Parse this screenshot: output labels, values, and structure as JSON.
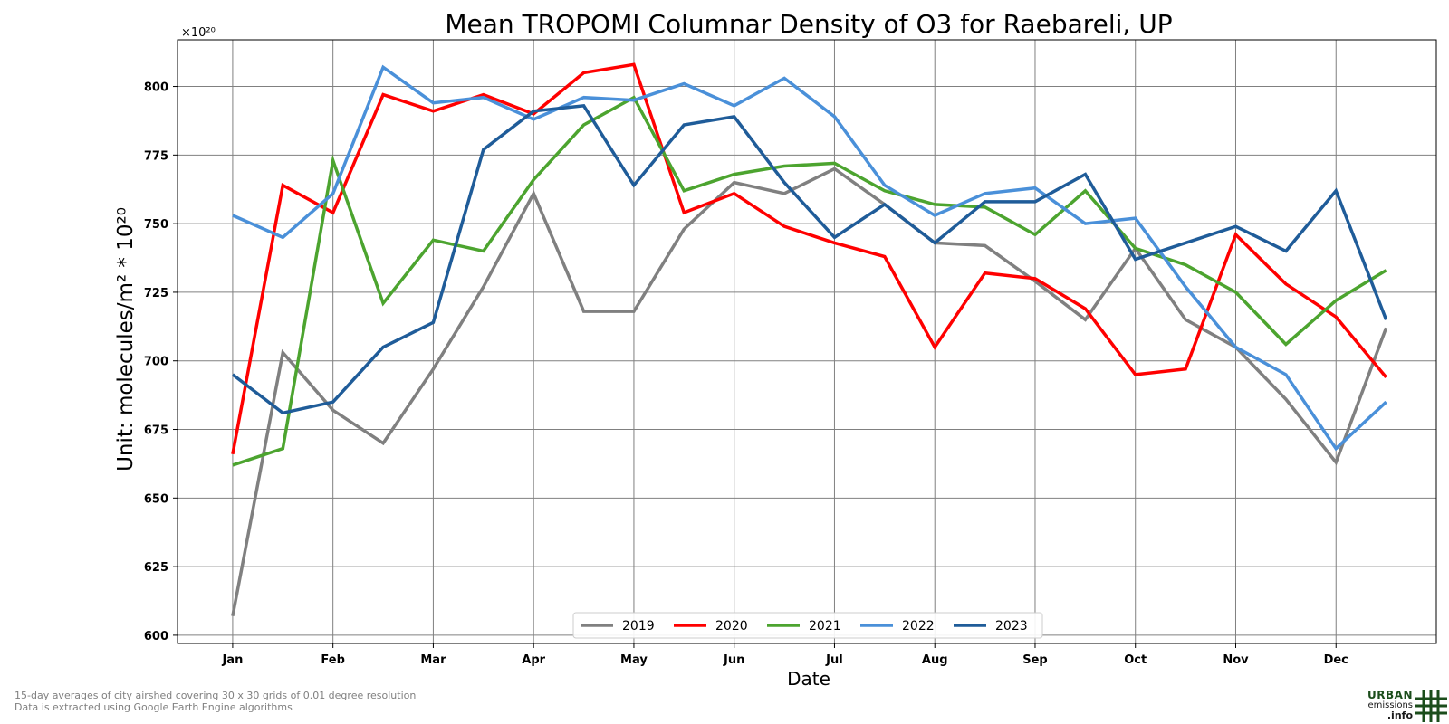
{
  "title": "Mean TROPOMI Columnar Density of O3 for Raebareli, UP",
  "footnotes": [
    "15-day averages of city airshed covering 30 x 30 grids of 0.01 degree resolution",
    "Data is extracted using Google Earth Engine algorithms"
  ],
  "logo": {
    "line1": "URBAN",
    "line2": "emissions",
    "line3": ".info",
    "icon": "grid-hash-icon"
  },
  "chart_data": {
    "type": "line",
    "title": "Mean TROPOMI Columnar Density of O3 for Raebareli, UP",
    "xlabel": "Date",
    "ylabel": "Unit: molecules/m² * 10²⁰",
    "y_offset_label": "×10²⁰",
    "ylim": [
      597,
      817
    ],
    "yticks": [
      600,
      625,
      650,
      675,
      700,
      725,
      750,
      775,
      800
    ],
    "xlim": [
      -0.55,
      12.0
    ],
    "xtick_labels": [
      "Jan",
      "Feb",
      "Mar",
      "Apr",
      "May",
      "Jun",
      "Jul",
      "Aug",
      "Sep",
      "Oct",
      "Nov",
      "Dec"
    ],
    "xtick_positions": [
      0,
      1,
      2,
      3,
      4,
      5,
      6,
      7,
      8,
      9,
      10,
      11
    ],
    "x": [
      0,
      0.5,
      1,
      1.5,
      2,
      2.5,
      3,
      3.5,
      4,
      4.5,
      5,
      5.5,
      6,
      6.5,
      7,
      7.5,
      8,
      8.5,
      9,
      9.5,
      10,
      10.5,
      11,
      11.5
    ],
    "grid": true,
    "legend_position": "bottom-center",
    "series": [
      {
        "name": "2019",
        "color": "#808080",
        "values": [
          607,
          703,
          682,
          670,
          697,
          727,
          761,
          718,
          718,
          748,
          765,
          761,
          770,
          757,
          743,
          742,
          729,
          715,
          741,
          715,
          705,
          686,
          663,
          712
        ]
      },
      {
        "name": "2020",
        "color": "#ff0000",
        "values": [
          666,
          764,
          754,
          797,
          791,
          797,
          790,
          805,
          808,
          754,
          761,
          749,
          743,
          738,
          705,
          732,
          730,
          719,
          695,
          697,
          746,
          728,
          716,
          694
        ]
      },
      {
        "name": "2021",
        "color": "#4ca42f",
        "values": [
          662,
          668,
          773,
          721,
          744,
          740,
          766,
          786,
          796,
          762,
          768,
          771,
          772,
          762,
          757,
          756,
          746,
          762,
          741,
          735,
          725,
          706,
          722,
          733
        ]
      },
      {
        "name": "2022",
        "color": "#4a90d9",
        "values": [
          753,
          745,
          761,
          807,
          794,
          796,
          788,
          796,
          795,
          801,
          793,
          803,
          789,
          764,
          753,
          761,
          763,
          750,
          752,
          727,
          705,
          695,
          668,
          685
        ]
      },
      {
        "name": "2023",
        "color": "#1f5c99",
        "values": [
          695,
          681,
          685,
          705,
          714,
          777,
          791,
          793,
          764,
          786,
          789,
          765,
          745,
          757,
          743,
          758,
          758,
          768,
          737,
          743,
          749,
          740,
          762,
          715
        ]
      }
    ]
  }
}
